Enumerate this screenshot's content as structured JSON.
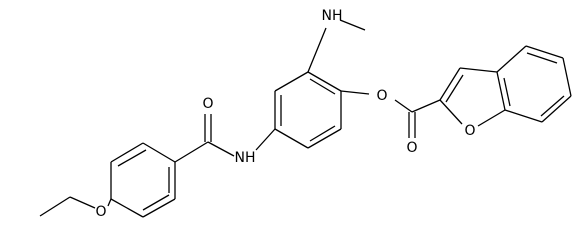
{
  "atoms": [
    {
      "label": "O"
    },
    {
      "label": "NH"
    },
    {
      "label": "O"
    },
    {
      "label": "NH"
    },
    {
      "label": "O"
    },
    {
      "label": "O"
    },
    {
      "label": "O"
    }
  ]
}
